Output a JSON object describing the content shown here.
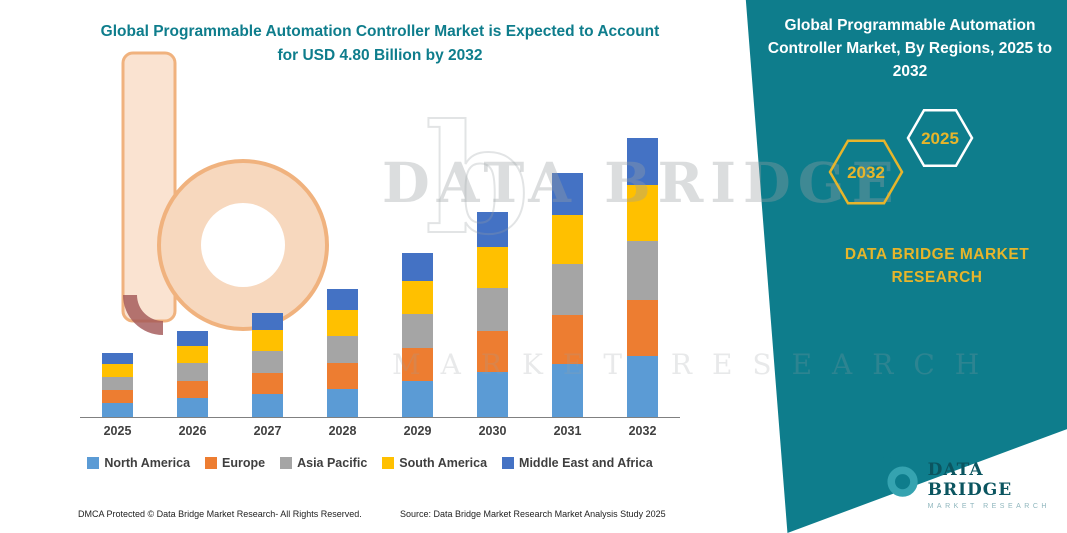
{
  "header": {
    "title_lines": [
      "Global Programmable Automation Controller Market is Expected to Account",
      "for USD 4.80 Billion by 2032"
    ]
  },
  "side_panel": {
    "title": "Global Programmable Automation Controller Market, By Regions, 2025 to 2032",
    "badges": [
      {
        "label": "2032",
        "stroke": "#e7b52b"
      },
      {
        "label": "2025",
        "stroke": "#ffffff"
      }
    ],
    "brand": "DATA BRIDGE MARKET RESEARCH",
    "accent_color": "#0e7d8c",
    "gold_color": "#e7b52b"
  },
  "chart_data": {
    "type": "bar",
    "stacked": true,
    "title": "Global Programmable Automation Controller Market is Expected to Account for USD 4.80 Billion by 2032",
    "unit": "USD Billion",
    "categories": [
      "2025",
      "2026",
      "2027",
      "2028",
      "2029",
      "2030",
      "2031",
      "2032"
    ],
    "series": [
      {
        "name": "North America",
        "color": "#5B9BD5",
        "values": [
          0.24,
          0.32,
          0.4,
          0.48,
          0.62,
          0.77,
          0.92,
          1.06
        ]
      },
      {
        "name": "Europe",
        "color": "#ED7D31",
        "values": [
          0.22,
          0.29,
          0.36,
          0.44,
          0.57,
          0.7,
          0.84,
          0.96
        ]
      },
      {
        "name": "Asia Pacific",
        "color": "#A5A5A5",
        "values": [
          0.23,
          0.31,
          0.38,
          0.46,
          0.59,
          0.74,
          0.88,
          1.01
        ]
      },
      {
        "name": "South America",
        "color": "#FFC000",
        "values": [
          0.22,
          0.29,
          0.36,
          0.44,
          0.57,
          0.7,
          0.84,
          0.96
        ]
      },
      {
        "name": "Middle East and Africa",
        "color": "#4472C4",
        "values": [
          0.19,
          0.25,
          0.3,
          0.37,
          0.48,
          0.6,
          0.72,
          0.81
        ]
      }
    ],
    "totals": [
      1.1,
      1.46,
      1.8,
      2.19,
      2.83,
      3.51,
      4.2,
      4.8
    ],
    "xlabel": "",
    "ylabel": "",
    "ylim": [
      0,
      5
    ],
    "grid": false,
    "legend_position": "bottom"
  },
  "watermark": {
    "glyph": "b",
    "line1": "DATA BRIDGE",
    "line2": "MARKET RESEARCH"
  },
  "footer": {
    "dmca": "DMCA Protected © Data Bridge Market Research-  All Rights Reserved.",
    "source": "Source: Data Bridge Market Research  Market Analysis Study 2025"
  },
  "logo": {
    "name": "DATA BRIDGE",
    "sub": "MARKET RESEARCH"
  }
}
